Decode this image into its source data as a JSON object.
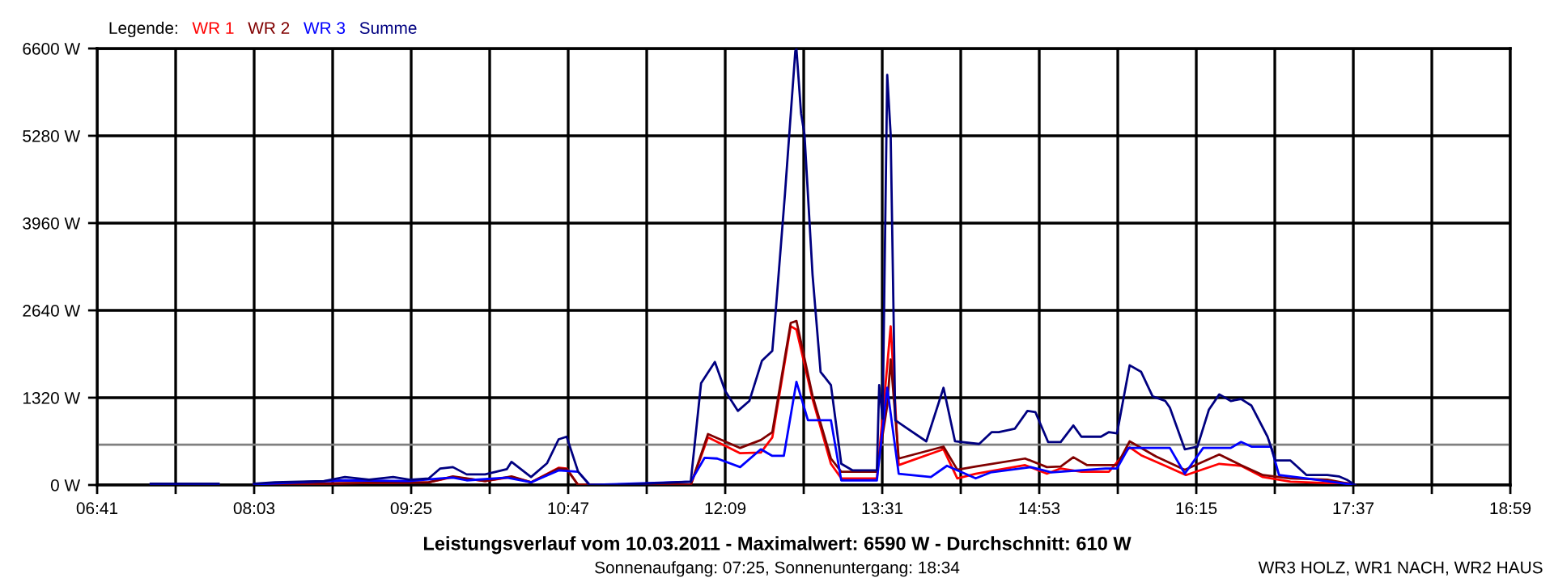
{
  "chart_data": {
    "type": "line",
    "title": "Leistungsverlauf vom 10.03.2011 - Maximalwert: 6590 W - Durchschnitt: 610 W",
    "subtitle": "Sonnenaufgang: 07:25, Sonnenuntergang: 18:34",
    "annotations": [
      "WR3 HOLZ, WR1 NACH, WR2 HAUS"
    ],
    "legend_title": "Legende:",
    "legend": "top left",
    "grid": true,
    "marker": "none",
    "line_style": "solid",
    "xlim": [
      6.6833,
      18.9833
    ],
    "xticks": [
      {
        "value": 6.6833,
        "label": "06:41"
      },
      {
        "value": 7.3667,
        "label": null
      },
      {
        "value": 8.05,
        "label": "08:03"
      },
      {
        "value": 8.7333,
        "label": null
      },
      {
        "value": 9.4167,
        "label": "09:25"
      },
      {
        "value": 10.1,
        "label": null
      },
      {
        "value": 10.7833,
        "label": "10:47"
      },
      {
        "value": 11.4667,
        "label": null
      },
      {
        "value": 12.15,
        "label": "12:09"
      },
      {
        "value": 12.8333,
        "label": null
      },
      {
        "value": 13.5167,
        "label": "13:31"
      },
      {
        "value": 14.2,
        "label": null
      },
      {
        "value": 14.8833,
        "label": "14:53"
      },
      {
        "value": 15.5667,
        "label": null
      },
      {
        "value": 16.25,
        "label": "16:15"
      },
      {
        "value": 16.9333,
        "label": null
      },
      {
        "value": 17.6167,
        "label": "17:37"
      },
      {
        "value": 18.3,
        "label": null
      },
      {
        "value": 18.9833,
        "label": "18:59"
      }
    ],
    "ylim": [
      0,
      6600
    ],
    "yticks": [
      {
        "value": 0,
        "label": "0 W"
      },
      {
        "value": 1320,
        "label": "1320 W"
      },
      {
        "value": 2640,
        "label": "2640 W"
      },
      {
        "value": 3960,
        "label": "3960 W"
      },
      {
        "value": 5280,
        "label": "5280 W"
      },
      {
        "value": 6600,
        "label": "6600 W"
      }
    ],
    "ref_lines": [
      {
        "axis": "y",
        "value": 610,
        "color": "#808080"
      }
    ],
    "series": [
      {
        "name": "WR 1",
        "color": "#ff0000",
        "x": [
          8.05,
          9.57,
          9.78,
          10.06,
          10.29,
          10.46,
          10.7,
          10.77,
          10.87,
          11.85,
          12.0,
          12.28,
          12.46,
          12.56,
          12.72,
          12.77,
          12.91,
          13.07,
          13.16,
          13.47,
          13.56,
          13.59,
          13.66,
          14.05,
          14.17,
          14.33,
          14.76,
          14.95,
          15.07,
          15.25,
          15.49,
          15.67,
          15.77,
          15.98,
          16.16,
          16.45,
          16.64,
          16.83,
          17.07,
          17.39,
          17.56,
          17.63
        ],
        "values": [
          10,
          40,
          120,
          60,
          120,
          40,
          260,
          250,
          0,
          0,
          720,
          480,
          490,
          720,
          2400,
          2350,
          1300,
          320,
          100,
          100,
          1800,
          2400,
          300,
          540,
          100,
          170,
          300,
          170,
          250,
          200,
          200,
          570,
          450,
          290,
          150,
          320,
          290,
          120,
          50,
          30,
          30,
          0
        ]
      },
      {
        "name": "WR 2",
        "color": "#800000",
        "x": [
          8.05,
          9.57,
          9.78,
          10.06,
          10.29,
          10.46,
          10.7,
          10.77,
          10.87,
          11.85,
          12.0,
          12.28,
          12.46,
          12.56,
          12.72,
          12.77,
          12.91,
          13.07,
          13.16,
          13.47,
          13.56,
          13.59,
          13.66,
          14.05,
          14.17,
          14.33,
          14.76,
          14.95,
          15.07,
          15.18,
          15.3,
          15.56,
          15.67,
          15.9,
          16.15,
          16.45,
          16.64,
          16.83,
          17.07,
          17.39,
          17.63
        ],
        "values": [
          10,
          40,
          130,
          60,
          130,
          40,
          250,
          240,
          0,
          0,
          770,
          560,
          680,
          800,
          2450,
          2480,
          1350,
          400,
          200,
          200,
          1200,
          1900,
          400,
          580,
          230,
          280,
          400,
          270,
          280,
          420,
          300,
          300,
          660,
          430,
          230,
          460,
          300,
          150,
          100,
          80,
          0
        ]
      },
      {
        "name": "WR 3",
        "color": "#0000ff",
        "x": [
          7.15,
          7.74,
          7.9,
          8.05,
          8.84,
          9.4,
          9.67,
          9.78,
          9.9,
          10.25,
          10.46,
          10.7,
          10.87,
          10.97,
          11.85,
          11.97,
          12.08,
          12.28,
          12.46,
          12.56,
          12.66,
          12.77,
          12.87,
          13.07,
          13.16,
          13.47,
          13.56,
          13.66,
          13.94,
          14.08,
          14.33,
          14.46,
          14.81,
          14.99,
          15.46,
          15.56,
          15.66,
          16.02,
          16.15,
          16.31,
          16.55,
          16.64,
          16.73,
          16.9,
          16.97,
          17.21,
          17.63
        ],
        "values": [
          10,
          10,
          null,
          10,
          70,
          60,
          100,
          110,
          70,
          110,
          40,
          220,
          200,
          0,
          50,
          410,
          400,
          270,
          540,
          440,
          440,
          1560,
          980,
          980,
          70,
          70,
          1470,
          170,
          120,
          290,
          100,
          190,
          270,
          190,
          250,
          250,
          560,
          560,
          170,
          560,
          560,
          650,
          580,
          580,
          150,
          100,
          0
        ]
      },
      {
        "name": "Summe",
        "color": "#000080",
        "x": [
          7.15,
          7.74,
          7.9,
          8.05,
          8.23,
          8.66,
          8.84,
          9.05,
          9.26,
          9.4,
          9.57,
          9.67,
          9.78,
          9.9,
          10.06,
          10.25,
          10.29,
          10.46,
          10.6,
          10.7,
          10.77,
          10.87,
          10.97,
          11.21,
          11.85,
          11.94,
          12.06,
          12.15,
          12.26,
          12.36,
          12.47,
          12.56,
          12.59,
          12.67,
          12.76,
          12.77,
          12.81,
          12.84,
          12.91,
          12.98,
          13.07,
          13.16,
          13.26,
          13.47,
          13.49,
          13.52,
          13.56,
          13.59,
          13.63,
          13.73,
          13.9,
          14.05,
          14.15,
          14.36,
          14.47,
          14.53,
          14.67,
          14.78,
          14.85,
          14.96,
          15.07,
          15.18,
          15.25,
          15.42,
          15.49,
          15.56,
          15.67,
          15.77,
          15.87,
          15.98,
          16.02,
          16.15,
          16.26,
          16.36,
          16.45,
          16.55,
          16.64,
          16.73,
          16.87,
          16.94,
          17.07,
          17.21,
          17.39,
          17.49,
          17.56,
          17.63
        ],
        "values": [
          20,
          20,
          null,
          20,
          40,
          60,
          120,
          80,
          120,
          80,
          100,
          250,
          270,
          160,
          160,
          240,
          350,
          120,
          330,
          690,
          730,
          200,
          0,
          0,
          50,
          1540,
          1860,
          1420,
          1120,
          1270,
          1880,
          2030,
          2640,
          4400,
          6560,
          6590,
          5620,
          5300,
          3180,
          1710,
          1510,
          320,
          220,
          220,
          1510,
          1000,
          6200,
          5300,
          980,
          860,
          660,
          1470,
          660,
          620,
          800,
          800,
          850,
          1120,
          1100,
          650,
          650,
          900,
          730,
          730,
          800,
          780,
          1810,
          1710,
          1340,
          1270,
          1170,
          540,
          580,
          1140,
          1370,
          1270,
          1300,
          1200,
          730,
          370,
          370,
          150,
          150,
          130,
          80,
          0
        ]
      }
    ]
  }
}
